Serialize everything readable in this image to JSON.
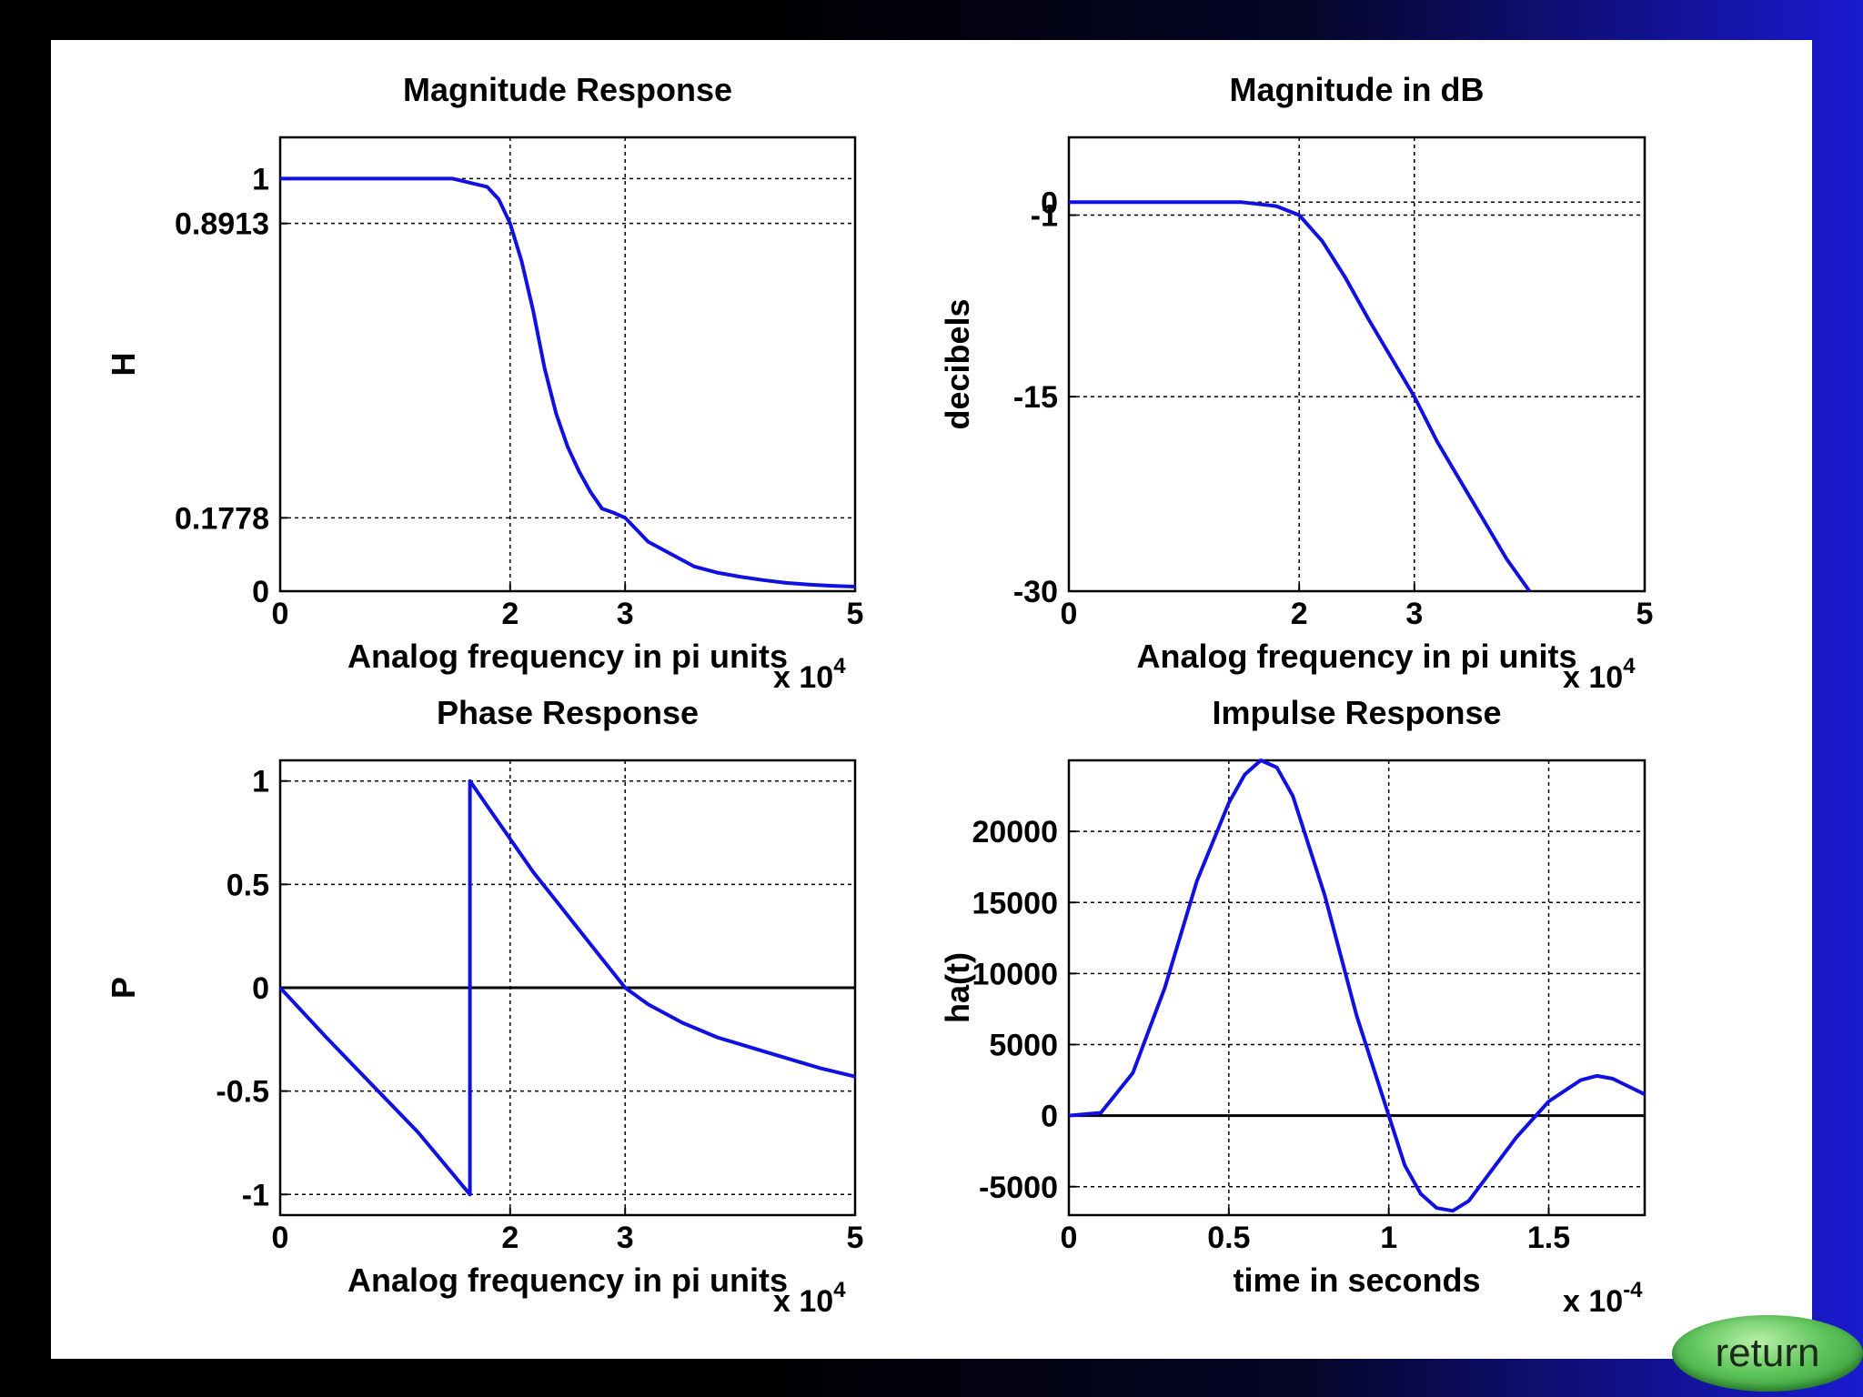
{
  "colors": {
    "page_bg": "#000000",
    "panel_bg": "#ffffff",
    "line": "#1010e0",
    "axis": "#000000",
    "grid": "#000000"
  },
  "return_label": "return",
  "chart_data": [
    {
      "type": "line",
      "title": "Magnitude Response",
      "xlabel": "Analog frequency in pi units",
      "ylabel": "H",
      "x_exponent_base": "x 10",
      "x_exponent_power": "4",
      "xlim": [
        0,
        50000
      ],
      "ylim": [
        0,
        1.1
      ],
      "xticks": [
        0,
        20000,
        30000,
        50000
      ],
      "xtick_labels": [
        "0",
        "2",
        "3",
        "5"
      ],
      "yticks": [
        0,
        0.1778,
        0.8913,
        1
      ],
      "ytick_labels": [
        "0",
        "0.1778",
        "0.8913",
        "1"
      ],
      "grid": true,
      "zero_line": false,
      "series": [
        {
          "x": [
            0,
            5000,
            10000,
            15000,
            18000,
            19000,
            20000,
            21000,
            22000,
            23000,
            24000,
            25000,
            26000,
            27000,
            28000,
            29000,
            30000,
            32000,
            34000,
            36000,
            38000,
            40000,
            42000,
            44000,
            46000,
            48000,
            50000
          ],
          "y": [
            1,
            1,
            1,
            1,
            0.98,
            0.95,
            0.8913,
            0.8,
            0.68,
            0.54,
            0.43,
            0.35,
            0.29,
            0.24,
            0.2,
            0.19,
            0.1778,
            0.12,
            0.09,
            0.06,
            0.045,
            0.035,
            0.027,
            0.02,
            0.016,
            0.013,
            0.011
          ]
        }
      ]
    },
    {
      "type": "line",
      "title": "Magnitude in dB",
      "xlabel": "Analog frequency in pi units",
      "ylabel": "decibels",
      "x_exponent_base": "x 10",
      "x_exponent_power": "4",
      "xlim": [
        0,
        50000
      ],
      "ylim": [
        -30,
        5
      ],
      "xticks": [
        0,
        20000,
        30000,
        50000
      ],
      "xtick_labels": [
        "0",
        "2",
        "3",
        "5"
      ],
      "yticks": [
        -30,
        -15,
        -1,
        0
      ],
      "ytick_labels": [
        "-30",
        "-15",
        "-1",
        "0"
      ],
      "grid": true,
      "zero_line": false,
      "series": [
        {
          "x": [
            0,
            5000,
            10000,
            15000,
            18000,
            20000,
            22000,
            24000,
            26000,
            28000,
            30000,
            32000,
            34000,
            36000,
            38000,
            40000
          ],
          "y": [
            0,
            0,
            0,
            0,
            -0.3,
            -1,
            -3,
            -5.8,
            -9,
            -12,
            -15,
            -18.5,
            -21.5,
            -24.5,
            -27.5,
            -30
          ]
        }
      ]
    },
    {
      "type": "line",
      "title": "Phase Response",
      "xlabel": "Analog frequency in pi units",
      "ylabel": "P",
      "x_exponent_base": "x 10",
      "x_exponent_power": "4",
      "xlim": [
        0,
        50000
      ],
      "ylim": [
        -1.1,
        1.1
      ],
      "xticks": [
        0,
        20000,
        30000,
        50000
      ],
      "xtick_labels": [
        "0",
        "2",
        "3",
        "5"
      ],
      "yticks": [
        -1,
        -0.5,
        0,
        0.5,
        1
      ],
      "ytick_labels": [
        "-1",
        "-0.5",
        "0",
        "0.5",
        "1"
      ],
      "grid": true,
      "zero_line": true,
      "series": [
        {
          "x": [
            0,
            4000,
            8000,
            12000,
            16500,
            16500,
            18000,
            20000,
            22000,
            24000,
            26000,
            28000,
            30000,
            32000,
            35000,
            38000,
            41000,
            44000,
            47000,
            50000
          ],
          "y": [
            0,
            -0.24,
            -0.47,
            -0.7,
            -1,
            1,
            0.88,
            0.72,
            0.56,
            0.42,
            0.28,
            0.14,
            0,
            -0.08,
            -0.17,
            -0.24,
            -0.29,
            -0.34,
            -0.39,
            -0.43
          ]
        }
      ]
    },
    {
      "type": "line",
      "title": "Impulse Response",
      "xlabel": "time in seconds",
      "ylabel": "ha(t)",
      "x_exponent_base": "x 10",
      "x_exponent_power": "-4",
      "xlim": [
        0,
        0.00018
      ],
      "ylim": [
        -7000,
        25000
      ],
      "xticks": [
        0,
        5e-05,
        0.0001,
        0.00015
      ],
      "xtick_labels": [
        "0",
        "0.5",
        "1",
        "1.5"
      ],
      "yticks": [
        -5000,
        0,
        5000,
        10000,
        15000,
        20000
      ],
      "ytick_labels": [
        "-5000",
        "0",
        "5000",
        "10000",
        "15000",
        "20000"
      ],
      "grid": true,
      "zero_line": true,
      "series": [
        {
          "x": [
            0,
            1e-05,
            2e-05,
            3e-05,
            4e-05,
            5e-05,
            5.5e-05,
            6e-05,
            6.5e-05,
            7e-05,
            8e-05,
            9e-05,
            0.0001,
            0.000105,
            0.00011,
            0.000115,
            0.00012,
            0.000125,
            0.00013,
            0.00014,
            0.00015,
            0.00016,
            0.000165,
            0.00017,
            0.00018
          ],
          "y": [
            0,
            200,
            3000,
            9000,
            16500,
            22000,
            24000,
            25000,
            24500,
            22500,
            15500,
            7000,
            0,
            -3500,
            -5500,
            -6500,
            -6700,
            -6000,
            -4500,
            -1500,
            1000,
            2500,
            2800,
            2600,
            1500
          ]
        }
      ]
    }
  ]
}
